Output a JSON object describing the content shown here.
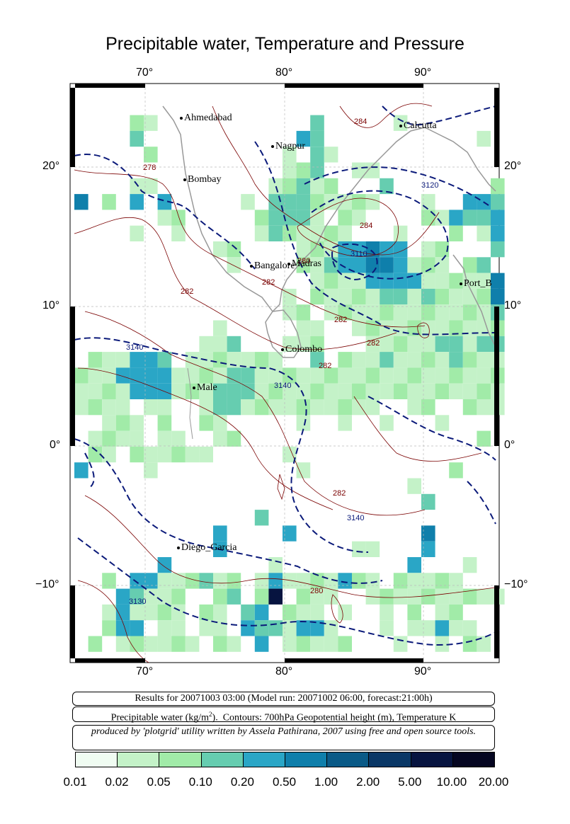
{
  "title": "Precipitable water, Temperature and Pressure",
  "lon_ticks": [
    "70°",
    "80°",
    "90°"
  ],
  "lat_ticks": [
    "20°",
    "10°",
    "0°",
    "−10°"
  ],
  "cities": [
    {
      "name": "Ahmedabad"
    },
    {
      "name": "Nagpur"
    },
    {
      "name": "Calcutta"
    },
    {
      "name": "Bombay"
    },
    {
      "name": "Bangalore"
    },
    {
      "name": "Madras"
    },
    {
      "name": "Port_B"
    },
    {
      "name": "Colombo"
    },
    {
      "name": "Male"
    },
    {
      "name": "Diego_Garcia"
    }
  ],
  "contour_labels": [
    "3140",
    "3140",
    "3140",
    "3130",
    "3120",
    "3110",
    "284",
    "284",
    "282",
    "282",
    "282",
    "282",
    "280",
    "280",
    "278",
    "282",
    "282"
  ],
  "captions": {
    "results": "Results for 20071003 03:00 (Model run: 20071002 06:00, forecast:21:00h)",
    "legend": "Precipitable water (kg/m²).  Contours: 700hPa Geopotential height (m), Temperature K",
    "credit": "produced by 'plotgrid' utility written by Assela Pathirana, 2007 using free and open source tools."
  },
  "colorbar": {
    "labels": [
      "0.01",
      "0.02",
      "0.05",
      "0.10",
      "0.20",
      "0.50",
      "1.00",
      "2.00",
      "5.00",
      "10.00",
      "20.00"
    ],
    "colors": [
      "#f0fcf2",
      "#c4f2c8",
      "#a1eba8",
      "#66cdb0",
      "#2aa6c6",
      "#0f7fab",
      "#0a5a87",
      "#0a3766",
      "#071440",
      "#050621"
    ]
  }
}
